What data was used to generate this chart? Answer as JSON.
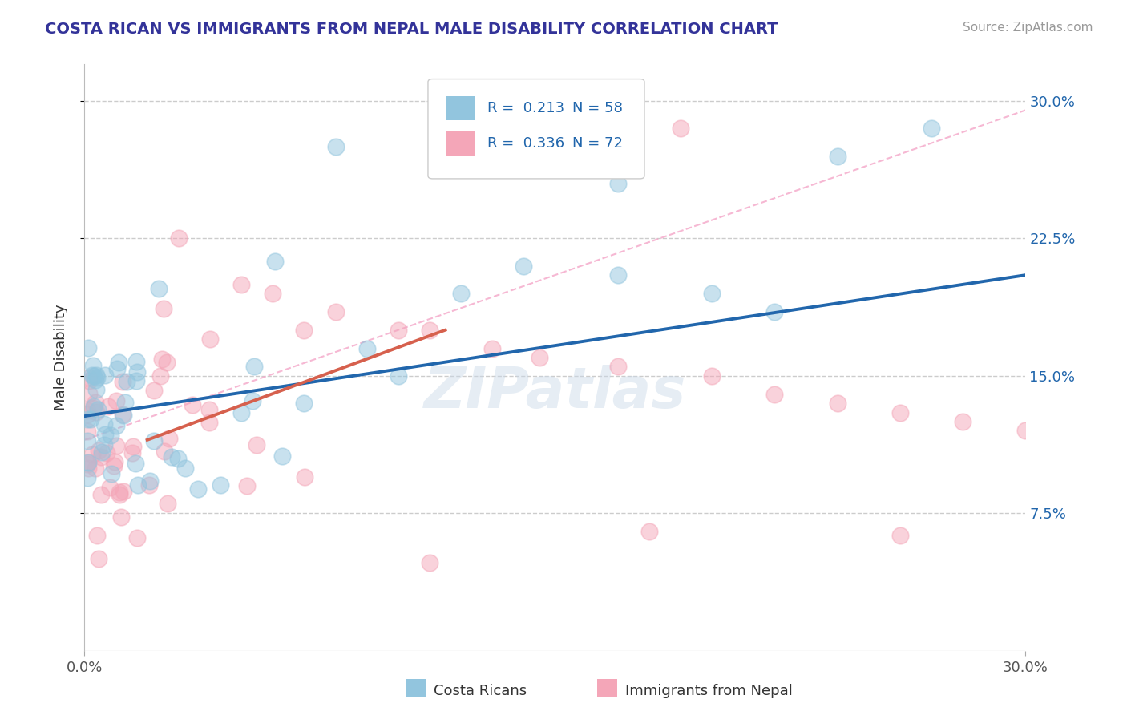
{
  "title": "COSTA RICAN VS IMMIGRANTS FROM NEPAL MALE DISABILITY CORRELATION CHART",
  "source": "Source: ZipAtlas.com",
  "ylabel": "Male Disability",
  "xlim": [
    0.0,
    0.3
  ],
  "ylim": [
    0.0,
    0.32
  ],
  "ytick_labels": [
    "7.5%",
    "15.0%",
    "22.5%",
    "30.0%"
  ],
  "ytick_positions": [
    0.075,
    0.15,
    0.225,
    0.3
  ],
  "color_blue": "#92c5de",
  "color_pink": "#f4a6b8",
  "color_blue_line": "#2166ac",
  "color_pink_line": "#d6604d",
  "color_dash": "#f4a6c8",
  "background": "#ffffff",
  "watermark": "ZIPatlas",
  "blue_line_x0": 0.0,
  "blue_line_y0": 0.128,
  "blue_line_x1": 0.3,
  "blue_line_y1": 0.205,
  "pink_line_x0": 0.02,
  "pink_line_y0": 0.115,
  "pink_line_x1": 0.115,
  "pink_line_y1": 0.175,
  "dash_line_x0": 0.0,
  "dash_line_y0": 0.115,
  "dash_line_x1": 0.3,
  "dash_line_y1": 0.295,
  "cr_seed": 42,
  "np_seed": 99
}
